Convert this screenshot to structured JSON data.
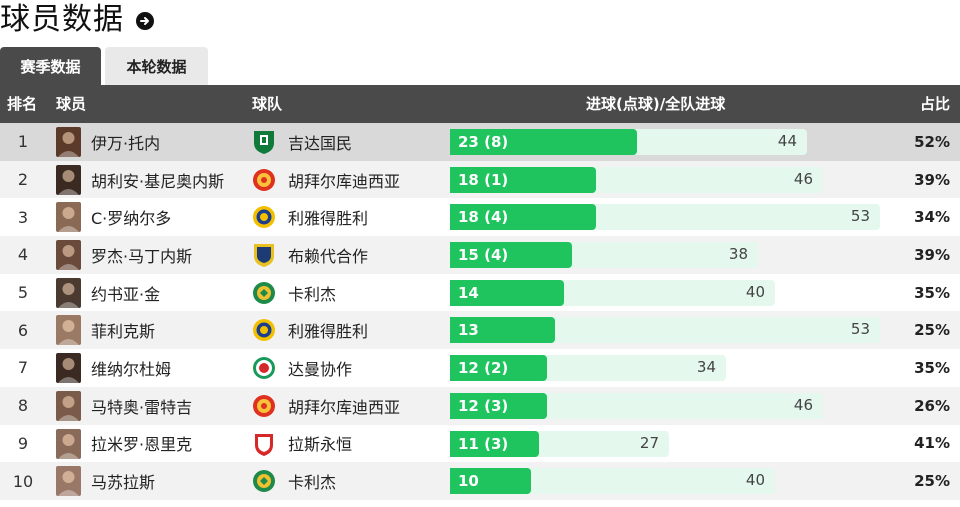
{
  "page": {
    "title": "球员数据",
    "title_icon": "arrow-right-circle-icon"
  },
  "tabs": [
    {
      "label": "赛季数据",
      "active": true
    },
    {
      "label": "本轮数据",
      "active": false
    }
  ],
  "table": {
    "headers": {
      "rank": "排名",
      "player": "球员",
      "team": "球队",
      "goals": "进球(点球)/全队进球",
      "ratio": "占比"
    },
    "colors": {
      "player_bar": "#1fc45e",
      "team_bar": "#e4f8ee",
      "header_bg": "#4a4a4a"
    },
    "rows": [
      {
        "rank": "1",
        "player": "伊万·托内",
        "team": "吉达国民",
        "goals_label": "23 (8)",
        "goals": 23,
        "team_goals": 44,
        "team_goals_label": "44",
        "ratio": "52%",
        "avatar_color": "#5b3a2a",
        "badge": "ahli"
      },
      {
        "rank": "2",
        "player": "胡利安·基尼奥内斯",
        "team": "胡拜尔库迪西亚",
        "goals_label": "18 (1)",
        "goals": 18,
        "team_goals": 46,
        "team_goals_label": "46",
        "ratio": "39%",
        "avatar_color": "#3b2a22",
        "badge": "qadsiah"
      },
      {
        "rank": "3",
        "player": "C·罗纳尔多",
        "team": "利雅得胜利",
        "goals_label": "18 (4)",
        "goals": 18,
        "team_goals": 53,
        "team_goals_label": "53",
        "ratio": "34%",
        "avatar_color": "#8a6a55",
        "badge": "nassr"
      },
      {
        "rank": "4",
        "player": "罗杰·马丁内斯",
        "team": "布赖代合作",
        "goals_label": "15 (4)",
        "goals": 15,
        "team_goals": 38,
        "team_goals_label": "38",
        "ratio": "39%",
        "avatar_color": "#6a4a3a",
        "badge": "taawoun"
      },
      {
        "rank": "5",
        "player": "约书亚·金",
        "team": "卡利杰",
        "goals_label": "14",
        "goals": 14,
        "team_goals": 40,
        "team_goals_label": "40",
        "ratio": "35%",
        "avatar_color": "#4a3a30",
        "badge": "khaleej"
      },
      {
        "rank": "6",
        "player": "菲利克斯",
        "team": "利雅得胜利",
        "goals_label": "13",
        "goals": 13,
        "team_goals": 53,
        "team_goals_label": "53",
        "ratio": "25%",
        "avatar_color": "#9a7a65",
        "badge": "nassr"
      },
      {
        "rank": "7",
        "player": "维纳尔杜姆",
        "team": "达曼协作",
        "goals_label": "12 (2)",
        "goals": 12,
        "team_goals": 34,
        "team_goals_label": "34",
        "ratio": "35%",
        "avatar_color": "#3a2a22",
        "badge": "ettifaq"
      },
      {
        "rank": "8",
        "player": "马特奥·雷特吉",
        "team": "胡拜尔库迪西亚",
        "goals_label": "12 (3)",
        "goals": 12,
        "team_goals": 46,
        "team_goals_label": "46",
        "ratio": "26%",
        "avatar_color": "#7a5a48",
        "badge": "qadsiah"
      },
      {
        "rank": "9",
        "player": "拉米罗·恩里克",
        "team": "拉斯永恒",
        "goals_label": "11 (3)",
        "goals": 11,
        "team_goals": 27,
        "team_goals_label": "27",
        "ratio": "41%",
        "avatar_color": "#8a6a58",
        "badge": "kholood"
      },
      {
        "rank": "10",
        "player": "马苏拉斯",
        "team": "卡利杰",
        "goals_label": "10",
        "goals": 10,
        "team_goals": 40,
        "team_goals_label": "40",
        "ratio": "25%",
        "avatar_color": "#9a7868",
        "badge": "khaleej"
      }
    ]
  }
}
